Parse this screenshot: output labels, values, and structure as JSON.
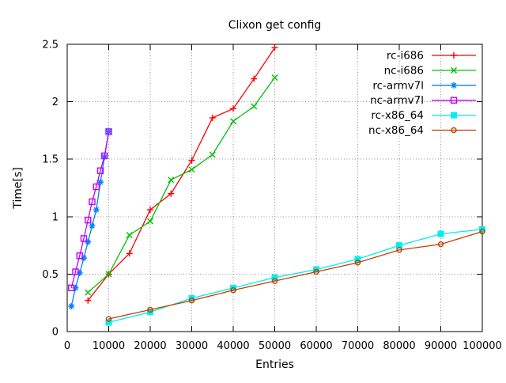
{
  "window": {
    "background": "#ffffff",
    "text_color": "#000000",
    "border_color": "#000000",
    "grid_color": "#909090"
  },
  "chart_data": {
    "type": "line",
    "title": "Clixon get config",
    "xlabel": "Entries",
    "ylabel": "Time[s]",
    "xlim": [
      0,
      100000
    ],
    "ylim": [
      0,
      2.5
    ],
    "xticks": [
      0,
      10000,
      20000,
      30000,
      40000,
      50000,
      60000,
      70000,
      80000,
      90000,
      100000
    ],
    "yticks": [
      0,
      0.5,
      1,
      1.5,
      2,
      2.5
    ],
    "grid": true,
    "legend_position": "top-right-inside",
    "series": [
      {
        "name": "rc-i686",
        "color": "#ff0000",
        "marker": "plus",
        "x": [
          5000,
          10000,
          15000,
          20000,
          25000,
          30000,
          35000,
          40000,
          45000,
          50000
        ],
        "y": [
          0.27,
          0.5,
          0.68,
          1.06,
          1.2,
          1.49,
          1.86,
          1.94,
          2.2,
          2.47
        ]
      },
      {
        "name": "nc-i686",
        "color": "#00c000",
        "marker": "times",
        "x": [
          5000,
          10000,
          15000,
          20000,
          25000,
          30000,
          35000,
          40000,
          45000,
          50000
        ],
        "y": [
          0.34,
          0.5,
          0.84,
          0.96,
          1.32,
          1.41,
          1.54,
          1.83,
          1.96,
          2.21
        ]
      },
      {
        "name": "rc-armv7l",
        "color": "#0080ff",
        "marker": "asterisk",
        "x": [
          1000,
          2000,
          3000,
          4000,
          5000,
          6000,
          7000,
          8000,
          9000,
          10000
        ],
        "y": [
          0.22,
          0.38,
          0.51,
          0.64,
          0.78,
          0.92,
          1.06,
          1.3,
          1.52,
          1.74
        ]
      },
      {
        "name": "nc-armv7l",
        "color": "#c000ff",
        "marker": "square-open",
        "x": [
          1000,
          2000,
          3000,
          4000,
          5000,
          6000,
          7000,
          8000,
          9000,
          10000
        ],
        "y": [
          0.38,
          0.52,
          0.66,
          0.81,
          0.97,
          1.13,
          1.26,
          1.4,
          1.53,
          1.74
        ]
      },
      {
        "name": "rc-x86_64",
        "color": "#00eeee",
        "marker": "square-filled",
        "x": [
          10000,
          20000,
          30000,
          40000,
          50000,
          60000,
          70000,
          80000,
          90000,
          100000
        ],
        "y": [
          0.08,
          0.17,
          0.29,
          0.38,
          0.47,
          0.54,
          0.63,
          0.75,
          0.85,
          0.89
        ]
      },
      {
        "name": "nc-x86_64",
        "color": "#c04000",
        "marker": "circle-open",
        "x": [
          10000,
          20000,
          30000,
          40000,
          50000,
          60000,
          70000,
          80000,
          90000,
          100000
        ],
        "y": [
          0.11,
          0.19,
          0.27,
          0.36,
          0.44,
          0.52,
          0.6,
          0.71,
          0.76,
          0.87
        ]
      }
    ]
  }
}
